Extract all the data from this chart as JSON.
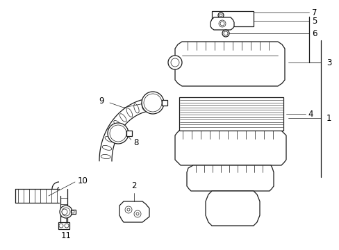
{
  "bg_color": "#ffffff",
  "line_color": "#1a1a1a",
  "lw": 0.9,
  "lw_thin": 0.5,
  "fs": 8.5,
  "fig_w": 4.89,
  "fig_h": 3.6,
  "dpi": 100
}
